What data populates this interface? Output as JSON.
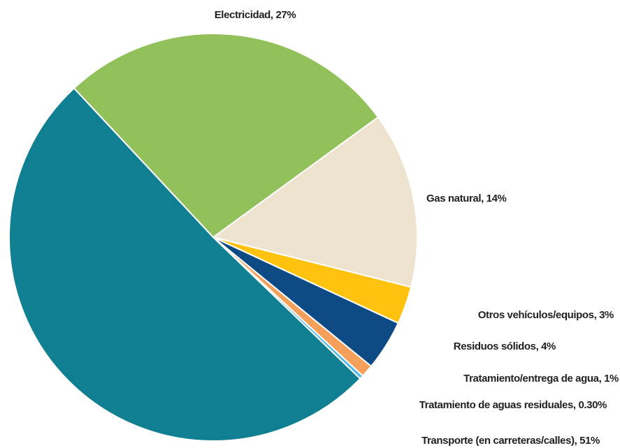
{
  "chart_data": {
    "type": "pie",
    "labels": [
      "Electricidad, 27%",
      "Gas natural, 14%",
      "Otros vehículos/equipos, 3%",
      "Residuos sólidos, 4%",
      "Tratamiento/entrega de agua, 1%",
      "Tratamiento de aguas residuales, 0.30%",
      "Transporte (en carreteras/calles), 51%"
    ],
    "values": [
      27,
      14,
      3,
      4,
      1,
      0.3,
      51
    ],
    "colors": [
      "#92c05a",
      "#ede3cf",
      "#ffc20e",
      "#0e4a84",
      "#f5a05a",
      "#4db8e8",
      "#117f92"
    ]
  }
}
